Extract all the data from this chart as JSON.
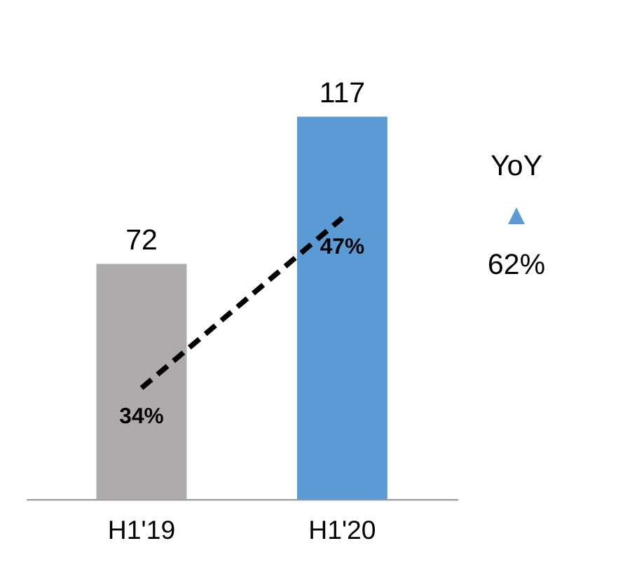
{
  "chart_data": {
    "type": "bar",
    "categories": [
      "H1'19",
      "H1'20"
    ],
    "series": [
      {
        "colors": [
          "#afabab",
          "#5b9bd5"
        ],
        "values": [
          72,
          117
        ],
        "value_labels": [
          "72",
          "117"
        ]
      },
      {
        "type": "line",
        "axis": "y2",
        "color": "#000000",
        "line_style": "dashed",
        "marker": "none",
        "values": [
          34,
          47
        ],
        "value_labels": [
          "34%",
          "47%"
        ]
      }
    ],
    "tick_labels": "x",
    "grid": false,
    "annotations": [
      "YoY",
      "▲",
      "62%"
    ]
  }
}
